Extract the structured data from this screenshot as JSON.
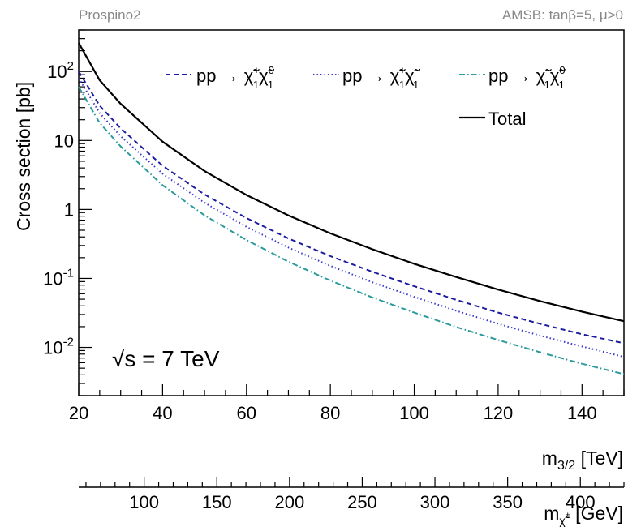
{
  "header": {
    "left_label": "Prospino2",
    "right_label": "AMSB: tanβ=5, μ>0"
  },
  "annotation": {
    "energy": "√s = 7 TeV"
  },
  "chart_data": {
    "type": "line",
    "xlabel": "m3/2 [TeV]",
    "ylabel": "Cross section [pb]",
    "xlim": [
      20,
      150
    ],
    "ylim": [
      0.002,
      400
    ],
    "y_scale": "log",
    "x_ticks": [
      "20",
      "40",
      "60",
      "80",
      "100",
      "120",
      "140"
    ],
    "y_ticks": [
      "10-2",
      "10-1",
      "1",
      "10",
      "102"
    ],
    "secondary_axis": {
      "label": "m χ̃1± [GeV]",
      "ticks": [
        "100",
        "150",
        "200",
        "250",
        "300",
        "350",
        "400"
      ],
      "range": [
        55,
        430
      ]
    },
    "legend_position": "top-right",
    "x": [
      20,
      25,
      30,
      40,
      50,
      60,
      70,
      80,
      90,
      100,
      110,
      120,
      130,
      140,
      150
    ],
    "series": [
      {
        "name": "pp → χ̃1+χ̃10",
        "style": "dashed",
        "color": "#1c1ca0",
        "values": [
          100,
          32,
          15,
          4.3,
          1.65,
          0.75,
          0.38,
          0.21,
          0.125,
          0.077,
          0.049,
          0.032,
          0.022,
          0.0155,
          0.0115
        ]
      },
      {
        "name": "pp → χ̃1+χ̃1-",
        "style": "dotted",
        "color": "#3a3ad0",
        "values": [
          80,
          25,
          11.5,
          3.3,
          1.25,
          0.56,
          0.28,
          0.152,
          0.088,
          0.054,
          0.034,
          0.022,
          0.0148,
          0.0103,
          0.0073
        ]
      },
      {
        "name": "pp → χ̃1-χ̃10",
        "style": "dashdot",
        "color": "#2a9a9a",
        "values": [
          60,
          18,
          8.2,
          2.25,
          0.82,
          0.36,
          0.175,
          0.093,
          0.053,
          0.032,
          0.0198,
          0.0128,
          0.0085,
          0.0058,
          0.0041
        ]
      },
      {
        "name": "Total",
        "style": "solid",
        "color": "#000000",
        "values": [
          260,
          75,
          34,
          9.6,
          3.6,
          1.62,
          0.82,
          0.45,
          0.265,
          0.163,
          0.105,
          0.069,
          0.047,
          0.033,
          0.024
        ]
      }
    ]
  }
}
